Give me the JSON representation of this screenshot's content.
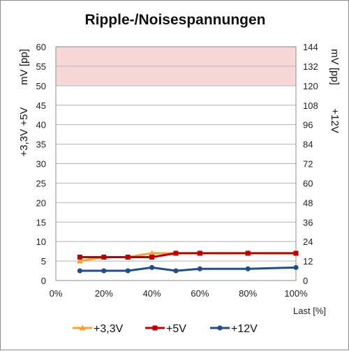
{
  "chart_data": {
    "type": "line",
    "title": "Ripple-/Noisespannungen",
    "xlabel": "Last [%]",
    "ylabel_left_top": "mV [pp]",
    "ylabel_left_bottom": "+3,3V  +5V",
    "ylabel_right_top": "mV [pp]",
    "ylabel_right_bottom": "+12V",
    "x_ticks": [
      "0%",
      "20%",
      "40%",
      "60%",
      "80%",
      "100%"
    ],
    "xlim": [
      0,
      100
    ],
    "ylim_left": [
      0,
      60
    ],
    "ylim_right": [
      0,
      144
    ],
    "y_ticks_left": [
      "0",
      "5",
      "10",
      "15",
      "20",
      "25",
      "30",
      "35",
      "40",
      "45",
      "50",
      "55",
      "60"
    ],
    "y_ticks_right": [
      "0",
      "12",
      "24",
      "36",
      "48",
      "60",
      "72",
      "84",
      "96",
      "108",
      "120",
      "132",
      "144"
    ],
    "limit_band_left": [
      50,
      60
    ],
    "grid": true,
    "legend_position": "bottom",
    "x": [
      10,
      20,
      30,
      40,
      50,
      60,
      80,
      100
    ],
    "series": [
      {
        "name": "+3,3V",
        "axis": "left",
        "color": "#f7a234",
        "marker": "triangle",
        "values": [
          5,
          6,
          6,
          7,
          7,
          7,
          7,
          7
        ]
      },
      {
        "name": "+5V",
        "axis": "left",
        "color": "#c00000",
        "marker": "square",
        "values": [
          6,
          6,
          6,
          6,
          7,
          7,
          7,
          7
        ]
      },
      {
        "name": "+12V",
        "axis": "right",
        "color": "#1f4e8c",
        "marker": "circle",
        "values": [
          6,
          6,
          6,
          8,
          6,
          7.2,
          7.2,
          8
        ]
      }
    ],
    "colors": {
      "band": "#f8d7d7",
      "grid": "#b4b4b4"
    }
  }
}
